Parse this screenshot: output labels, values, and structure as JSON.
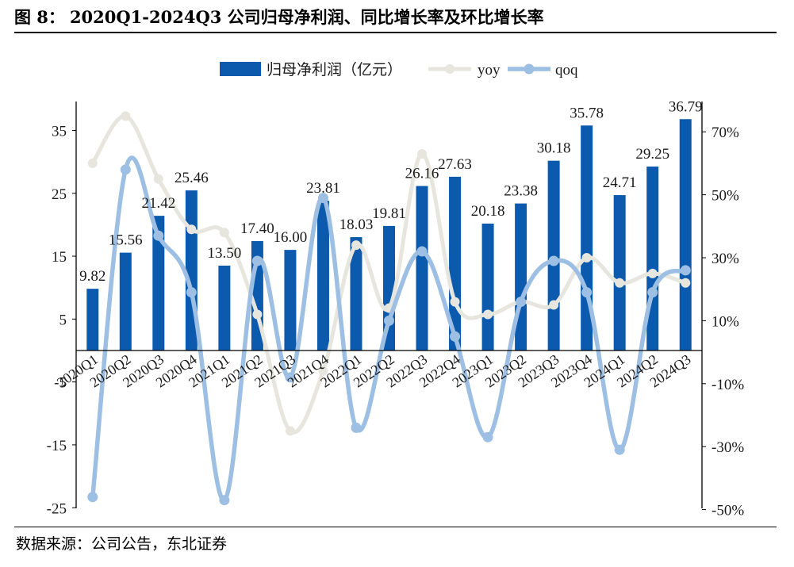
{
  "figure": {
    "label": "图 8：",
    "title": "2020Q1-2024Q3 公司归母净利润、同比增长率及环比增长率",
    "source": "数据来源：公司公告，东北证券"
  },
  "colors": {
    "bar": "#0c5aad",
    "yoy": "#e6e6df",
    "qoq": "#9dbfe3",
    "axis": "#000000"
  },
  "chart_data": {
    "type": "bar",
    "categories": [
      "2020Q1",
      "2020Q2",
      "2020Q3",
      "2020Q4",
      "2021Q1",
      "2021Q2",
      "2021Q3",
      "2021Q4",
      "2022Q1",
      "2022Q2",
      "2022Q3",
      "2022Q4",
      "2023Q1",
      "2023Q2",
      "2023Q3",
      "2023Q4",
      "2024Q1",
      "2024Q2",
      "2024Q3"
    ],
    "series": [
      {
        "name": "归母净利润（亿元）",
        "type": "bar",
        "axis": "left",
        "values": [
          9.82,
          15.56,
          21.42,
          25.46,
          13.5,
          17.4,
          16.0,
          23.81,
          18.03,
          19.81,
          26.16,
          27.63,
          20.18,
          23.38,
          30.18,
          35.78,
          24.71,
          29.25,
          36.79
        ],
        "labels": [
          "9.82",
          "15.56",
          "21.42",
          "25.46",
          "13.50",
          "17.40",
          "16.00",
          "23.81",
          "18.03",
          "19.81",
          "26.16",
          "27.63",
          "20.18",
          "23.38",
          "30.18",
          "35.78",
          "24.71",
          "29.25",
          "36.79"
        ]
      },
      {
        "name": "yoy",
        "type": "line",
        "axis": "right",
        "values": [
          60,
          75,
          55,
          39,
          38,
          12,
          -25,
          -6,
          34,
          14,
          63,
          16,
          12,
          16,
          15,
          30,
          22,
          25,
          22
        ]
      },
      {
        "name": "qoq",
        "type": "line",
        "axis": "right",
        "values": [
          -46,
          58,
          37,
          19,
          -47,
          29,
          -8,
          49,
          -24,
          10,
          32,
          5,
          -27,
          16,
          29,
          19,
          -31,
          19,
          26
        ]
      }
    ],
    "left_axis": {
      "ticks": [
        "35",
        "25",
        "15",
        "5",
        "-5",
        "-15",
        "-25"
      ],
      "tick_values": [
        35,
        25,
        15,
        5,
        -5,
        -15,
        -25
      ],
      "range": [
        -25,
        40
      ]
    },
    "right_axis": {
      "ticks": [
        "70%",
        "50%",
        "30%",
        "10%",
        "-10%",
        "-30%",
        "-50%"
      ],
      "tick_values": [
        70,
        50,
        30,
        10,
        -10,
        -30,
        -50
      ],
      "range": [
        -50,
        80
      ]
    },
    "legend": [
      "归母净利润（亿元）",
      "yoy",
      "qoq"
    ],
    "legend_position": "top",
    "grid": false
  }
}
